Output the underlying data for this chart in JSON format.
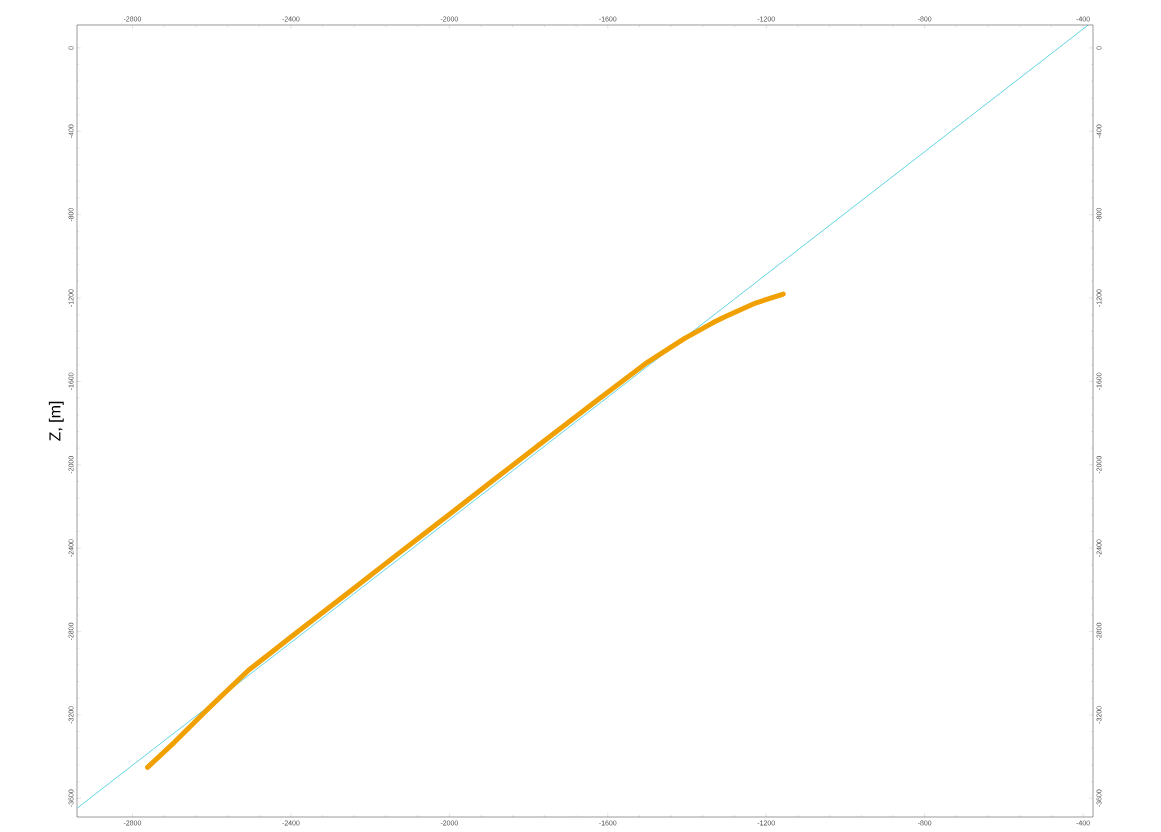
{
  "chart_data": {
    "type": "line",
    "ylabel": "Z, [m]",
    "xlim": [
      -2940,
      -375
    ],
    "xticks": [
      -2800,
      -2400,
      -2000,
      -1600,
      -1200,
      -800,
      -400
    ],
    "ylim": [
      -3690,
      110
    ],
    "yticks": [
      0,
      -400,
      -800,
      -1200,
      -1600,
      -2000,
      -2400,
      -2800,
      -3200,
      -3600
    ],
    "x2lim": [
      -2940,
      -375
    ],
    "x2ticks": [
      -2800,
      -2400,
      -2000,
      -1600,
      -1200,
      -800,
      -400
    ],
    "y2lim": [
      -3690,
      110
    ],
    "y2ticks": [
      0,
      -400,
      -800,
      -1200,
      -1600,
      -2000,
      -2400,
      -2800,
      -3200,
      -3600
    ],
    "grid": false,
    "marker": "none",
    "line_style": "solid",
    "series": [
      {
        "color": "#62d4e3",
        "x": [
          -2940,
          -387
        ],
        "values": [
          -3648,
          110
        ]
      },
      {
        "color": "#f0a000",
        "x": [
          -2762,
          -2695,
          -2607,
          -2507,
          -2382,
          -2256,
          -2131,
          -2006,
          -1881,
          -1755,
          -1630,
          -1505,
          -1407,
          -1335,
          -1300,
          -1227,
          -1157
        ],
        "values": [
          -3452,
          -3333,
          -3167,
          -2986,
          -2800,
          -2615,
          -2430,
          -2247,
          -2062,
          -1878,
          -1695,
          -1515,
          -1395,
          -1319,
          -1286,
          -1224,
          -1181
        ]
      }
    ]
  }
}
